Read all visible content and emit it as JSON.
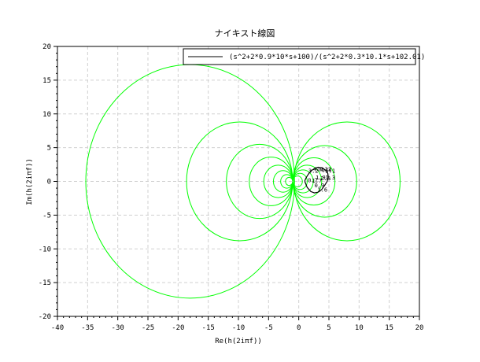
{
  "chart_data": {
    "type": "line",
    "title": "ナイキスト線図",
    "xlabel": "Re(h(2iπf))",
    "ylabel": "Im(h(2iπf))",
    "xlim": [
      -40,
      20
    ],
    "ylim": [
      -20,
      20
    ],
    "xticks": [
      -40,
      -35,
      -30,
      -25,
      -20,
      -15,
      -10,
      -5,
      0,
      5,
      10,
      15,
      20
    ],
    "yticks": [
      -20,
      -15,
      -10,
      -5,
      0,
      5,
      10,
      15,
      20
    ],
    "grid": true,
    "legend": {
      "position": "top-right",
      "entries": [
        "(s^2+2*0.9*10*s+100)/(s^2+2*0.3*10.1*s+102.01)"
      ]
    },
    "series_color": "#00ff00",
    "series": [
      {
        "type": "circle",
        "center": [
          -18,
          0
        ],
        "radius": 17.3
      },
      {
        "type": "circle",
        "center": [
          -9.8,
          0
        ],
        "radius": 8.8
      },
      {
        "type": "circle",
        "center": [
          -6.5,
          0
        ],
        "radius": 5.5
      },
      {
        "type": "circle",
        "center": [
          -4.6,
          0
        ],
        "radius": 3.6
      },
      {
        "type": "circle",
        "center": [
          -3.4,
          0
        ],
        "radius": 2.4
      },
      {
        "type": "circle",
        "center": [
          -2.6,
          0
        ],
        "radius": 1.6
      },
      {
        "type": "circle",
        "center": [
          -2.0,
          0
        ],
        "radius": 1.0
      },
      {
        "type": "circle",
        "center": [
          -1.6,
          0
        ],
        "radius": 0.6
      },
      {
        "type": "circle",
        "center": [
          8.0,
          0
        ],
        "radius": 8.8
      },
      {
        "type": "circle",
        "center": [
          4.3,
          0
        ],
        "radius": 5.3
      },
      {
        "type": "circle",
        "center": [
          2.5,
          0
        ],
        "radius": 3.5
      },
      {
        "type": "circle",
        "center": [
          1.4,
          0
        ],
        "radius": 2.4
      },
      {
        "type": "circle",
        "center": [
          0.7,
          0
        ],
        "radius": 1.7
      },
      {
        "type": "circle",
        "center": [
          0.2,
          0
        ],
        "radius": 1.2
      },
      {
        "type": "circle",
        "center": [
          -0.2,
          0
        ],
        "radius": 0.8
      }
    ],
    "frequency_curve": {
      "color": "#000000",
      "x": [
        1.0,
        1.4,
        2.0,
        2.6,
        3.2,
        3.8,
        4.3,
        4.7,
        4.9,
        4.8,
        4.4,
        3.8,
        3.2,
        2.6,
        2.1,
        1.7,
        1.4,
        1.2,
        1.05,
        1.0
      ],
      "y": [
        0.0,
        -0.9,
        -1.5,
        -1.7,
        -1.6,
        -1.2,
        -0.6,
        0.0,
        0.6,
        1.2,
        1.7,
        2.0,
        2.1,
        1.9,
        1.6,
        1.2,
        0.8,
        0.5,
        0.2,
        0.0
      ]
    },
    "freq_labels": [
      {
        "text": "3.2",
        "x": 1.6,
        "y": 1.3
      },
      {
        "text": "4.7",
        "x": 2.4,
        "y": 1.5
      },
      {
        "text": "0.32",
        "x": 3.2,
        "y": 1.5
      },
      {
        "text": "0.4",
        "x": 3.8,
        "y": 1.4
      },
      {
        "text": "5.1",
        "x": 4.4,
        "y": 1.3
      },
      {
        "text": "0.7",
        "x": 1.5,
        "y": -0.1
      },
      {
        "text": "1.7",
        "x": 2.2,
        "y": -0.2
      },
      {
        "text": "1.9",
        "x": 2.8,
        "y": 0.3
      },
      {
        "text": "2.8",
        "x": 3.6,
        "y": 0.2
      },
      {
        "text": "1.3",
        "x": 4.4,
        "y": 0.3
      },
      {
        "text": "0.9",
        "x": 2.6,
        "y": -0.9
      },
      {
        "text": "1.6",
        "x": 3.1,
        "y": -1.5
      }
    ]
  }
}
